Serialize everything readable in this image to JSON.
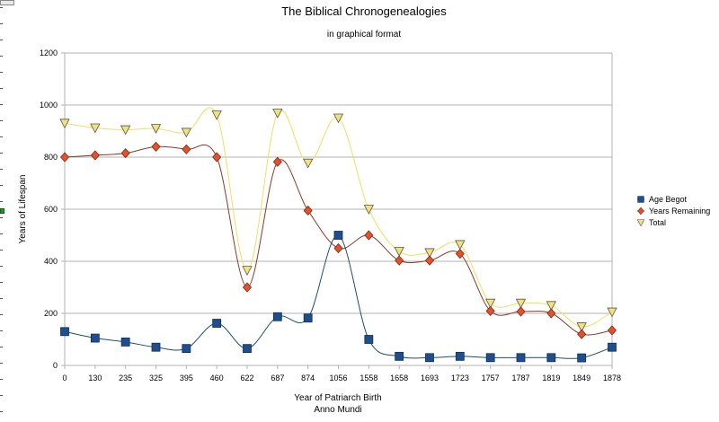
{
  "chart_data": {
    "type": "line",
    "title": "The Biblical Chronogenealogies",
    "subtitle": "in graphical format",
    "xlabel": "Year of Patriarch Birth",
    "xlabel2": "Anno Mundi",
    "ylabel": "Years of Lifespan",
    "categories": [
      "0",
      "130",
      "235",
      "325",
      "395",
      "460",
      "622",
      "687",
      "874",
      "1056",
      "1558",
      "1658",
      "1693",
      "1723",
      "1757",
      "1787",
      "1819",
      "1849",
      "1878"
    ],
    "ylim": [
      0,
      1200
    ],
    "yticks": [
      0,
      200,
      400,
      600,
      800,
      1000,
      1200
    ],
    "grid": true,
    "legend_position": "right",
    "series": [
      {
        "name": "Age Begot",
        "color": "#1f4e8c",
        "line_color": "#1f4e68",
        "marker": "square",
        "values": [
          130,
          105,
          90,
          70,
          65,
          162,
          65,
          187,
          182,
          500,
          100,
          35,
          30,
          35,
          30,
          30,
          30,
          29,
          70
        ]
      },
      {
        "name": "Years Remaining",
        "color": "#e8502a",
        "line_color": "#8b3a2a",
        "marker": "diamond",
        "values": [
          800,
          807,
          815,
          840,
          830,
          800,
          300,
          782,
          595,
          450,
          500,
          403,
          403,
          429,
          209,
          207,
          200,
          120,
          135
        ]
      },
      {
        "name": "Total",
        "color": "#f3e27a",
        "line_color": "#f0e060",
        "marker": "triangle-down",
        "values": [
          930,
          912,
          905,
          910,
          895,
          962,
          365,
          969,
          777,
          950,
          600,
          438,
          433,
          464,
          239,
          239,
          230,
          148,
          205
        ]
      }
    ]
  }
}
